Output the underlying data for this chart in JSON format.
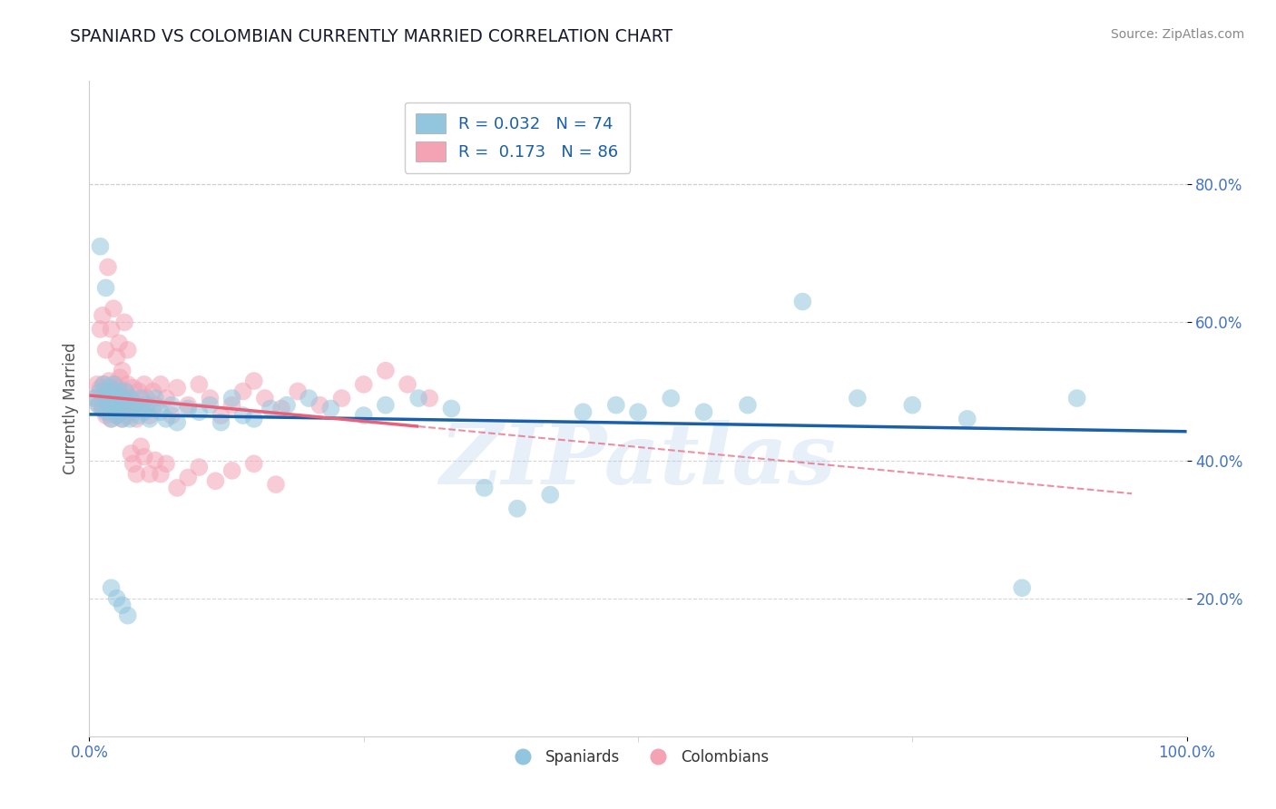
{
  "title": "SPANIARD VS COLOMBIAN CURRENTLY MARRIED CORRELATION CHART",
  "source": "Source: ZipAtlas.com",
  "ylabel": "Currently Married",
  "watermark": "ZIPatlas",
  "color_blue": "#92c5de",
  "color_pink": "#f4a3b5",
  "color_blue_line": "#1a5fa8",
  "color_pink_line": "#e8607a",
  "color_grid": "#cccccc",
  "R_spaniard": 0.032,
  "N_spaniard": 74,
  "R_colombian": 0.173,
  "N_colombian": 86,
  "ytick_labels": [
    "20.0%",
    "40.0%",
    "60.0%",
    "80.0%"
  ],
  "ytick_values": [
    0.2,
    0.4,
    0.6,
    0.8
  ],
  "spaniard_x": [
    0.005,
    0.008,
    0.01,
    0.012,
    0.013,
    0.015,
    0.015,
    0.017,
    0.018,
    0.02,
    0.02,
    0.022,
    0.022,
    0.023,
    0.025,
    0.025,
    0.027,
    0.028,
    0.03,
    0.03,
    0.032,
    0.033,
    0.035,
    0.037,
    0.038,
    0.04,
    0.042,
    0.045,
    0.047,
    0.05,
    0.052,
    0.055,
    0.058,
    0.06,
    0.065,
    0.07,
    0.075,
    0.08,
    0.09,
    0.1,
    0.11,
    0.12,
    0.13,
    0.14,
    0.15,
    0.165,
    0.18,
    0.2,
    0.22,
    0.25,
    0.27,
    0.3,
    0.33,
    0.36,
    0.39,
    0.42,
    0.45,
    0.48,
    0.5,
    0.53,
    0.56,
    0.6,
    0.65,
    0.7,
    0.75,
    0.8,
    0.85,
    0.9,
    0.01,
    0.015,
    0.02,
    0.025,
    0.03,
    0.035
  ],
  "spaniard_y": [
    0.49,
    0.48,
    0.5,
    0.475,
    0.51,
    0.495,
    0.47,
    0.485,
    0.505,
    0.49,
    0.46,
    0.48,
    0.51,
    0.475,
    0.49,
    0.465,
    0.5,
    0.48,
    0.49,
    0.46,
    0.475,
    0.5,
    0.485,
    0.46,
    0.49,
    0.475,
    0.48,
    0.465,
    0.49,
    0.47,
    0.48,
    0.46,
    0.475,
    0.49,
    0.47,
    0.46,
    0.48,
    0.455,
    0.475,
    0.47,
    0.48,
    0.455,
    0.49,
    0.465,
    0.46,
    0.475,
    0.48,
    0.49,
    0.475,
    0.465,
    0.48,
    0.49,
    0.475,
    0.36,
    0.33,
    0.35,
    0.47,
    0.48,
    0.47,
    0.49,
    0.47,
    0.48,
    0.63,
    0.49,
    0.48,
    0.46,
    0.215,
    0.49,
    0.71,
    0.65,
    0.215,
    0.2,
    0.19,
    0.175
  ],
  "colombian_x": [
    0.005,
    0.007,
    0.009,
    0.01,
    0.012,
    0.013,
    0.015,
    0.015,
    0.017,
    0.018,
    0.018,
    0.02,
    0.02,
    0.022,
    0.022,
    0.023,
    0.025,
    0.025,
    0.027,
    0.028,
    0.028,
    0.03,
    0.03,
    0.032,
    0.033,
    0.035,
    0.035,
    0.037,
    0.038,
    0.04,
    0.042,
    0.043,
    0.045,
    0.047,
    0.05,
    0.052,
    0.055,
    0.058,
    0.06,
    0.065,
    0.07,
    0.075,
    0.08,
    0.09,
    0.1,
    0.11,
    0.12,
    0.13,
    0.14,
    0.15,
    0.16,
    0.175,
    0.19,
    0.21,
    0.23,
    0.25,
    0.27,
    0.29,
    0.31,
    0.01,
    0.012,
    0.015,
    0.017,
    0.02,
    0.022,
    0.025,
    0.027,
    0.03,
    0.032,
    0.035,
    0.038,
    0.04,
    0.043,
    0.047,
    0.05,
    0.055,
    0.06,
    0.065,
    0.07,
    0.08,
    0.09,
    0.1,
    0.115,
    0.13,
    0.15,
    0.17
  ],
  "colombian_y": [
    0.49,
    0.51,
    0.48,
    0.505,
    0.475,
    0.51,
    0.49,
    0.465,
    0.5,
    0.48,
    0.515,
    0.49,
    0.46,
    0.5,
    0.48,
    0.51,
    0.49,
    0.465,
    0.505,
    0.48,
    0.52,
    0.49,
    0.46,
    0.5,
    0.48,
    0.51,
    0.465,
    0.49,
    0.475,
    0.505,
    0.48,
    0.46,
    0.5,
    0.475,
    0.51,
    0.49,
    0.465,
    0.5,
    0.48,
    0.51,
    0.49,
    0.465,
    0.505,
    0.48,
    0.51,
    0.49,
    0.465,
    0.48,
    0.5,
    0.515,
    0.49,
    0.475,
    0.5,
    0.48,
    0.49,
    0.51,
    0.53,
    0.51,
    0.49,
    0.59,
    0.61,
    0.56,
    0.68,
    0.59,
    0.62,
    0.55,
    0.57,
    0.53,
    0.6,
    0.56,
    0.41,
    0.395,
    0.38,
    0.42,
    0.405,
    0.38,
    0.4,
    0.38,
    0.395,
    0.36,
    0.375,
    0.39,
    0.37,
    0.385,
    0.395,
    0.365
  ]
}
